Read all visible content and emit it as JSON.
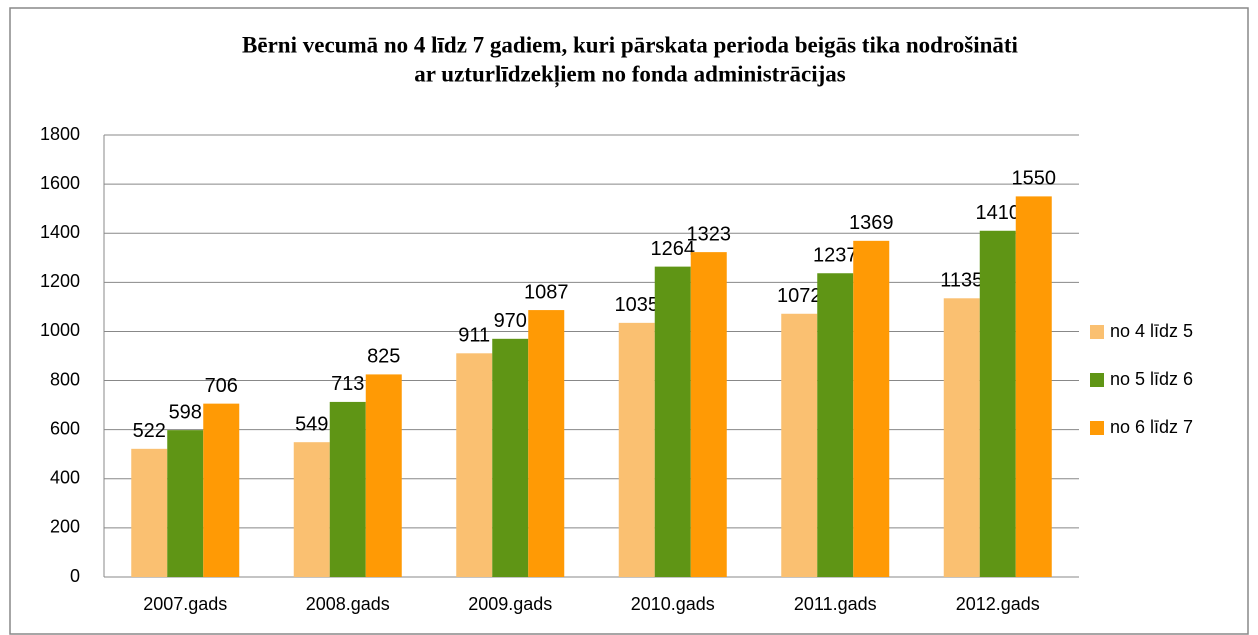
{
  "chart_data": {
    "type": "bar",
    "title": [
      "Bērni vecumā no 4 līdz 7 gadiem, kuri pārskata perioda beigās tika nodrošināti",
      "ar uzturlīdzekļiem no fonda administrācijas"
    ],
    "categories": [
      "2007.gads",
      "2008.gads",
      "2009.gads",
      "2010.gads",
      "2011.gads",
      "2012.gads"
    ],
    "series": [
      {
        "name": "no 4 līdz 5",
        "color": "#fac071",
        "values": [
          522,
          549,
          911,
          1035,
          1072,
          1135
        ]
      },
      {
        "name": "no 5 līdz 6",
        "color": "#5f9515",
        "values": [
          598,
          713,
          970,
          1264,
          1237,
          1410
        ]
      },
      {
        "name": "no 6 līdz 7",
        "color": "#ff9a05",
        "values": [
          706,
          825,
          1087,
          1323,
          1369,
          1550
        ]
      }
    ],
    "ylim": [
      0,
      1800
    ],
    "yticks": [
      0,
      200,
      400,
      600,
      800,
      1000,
      1200,
      1400,
      1600,
      1800
    ],
    "grid": true,
    "legend": "right"
  }
}
